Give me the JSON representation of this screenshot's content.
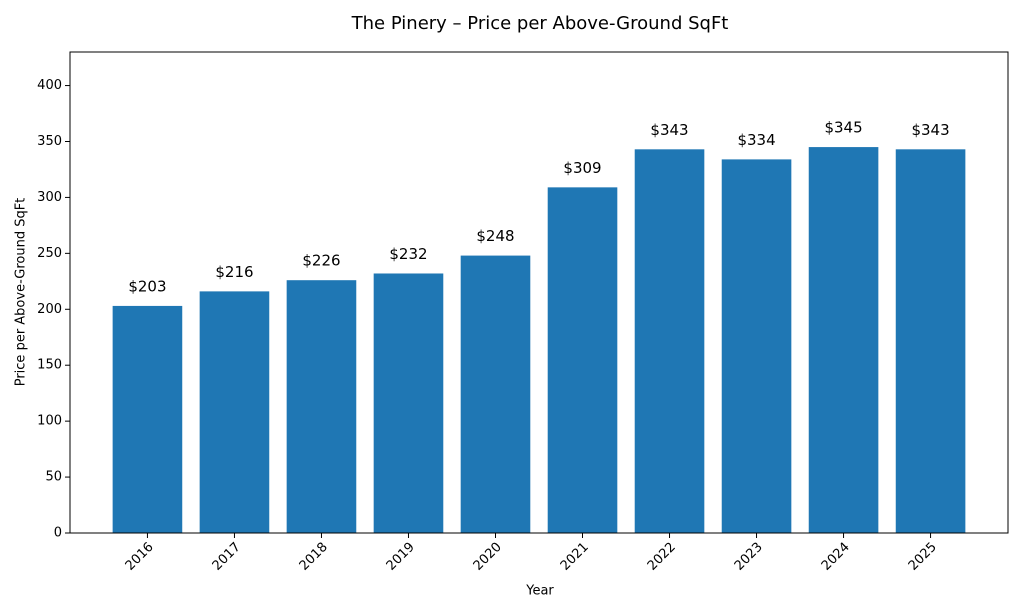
{
  "chart_data": {
    "type": "bar",
    "title": "The Pinery – Price per Above-Ground SqFt",
    "x_label": "Year",
    "y_label": "Price per Above-Ground SqFt",
    "categories": [
      "2016",
      "2017",
      "2018",
      "2019",
      "2020",
      "2021",
      "2022",
      "2023",
      "2024",
      "2025"
    ],
    "values": [
      203,
      216,
      226,
      232,
      248,
      309,
      343,
      334,
      345,
      343
    ],
    "value_labels": [
      "$203",
      "$216",
      "$226",
      "$232",
      "$248",
      "$309",
      "$343",
      "$334",
      "$345",
      "$343"
    ],
    "color": "#1f77b4",
    "ylim": [
      0,
      430
    ],
    "yticks": [
      0,
      50,
      100,
      150,
      200,
      250,
      300,
      350,
      400
    ],
    "grid": false
  }
}
